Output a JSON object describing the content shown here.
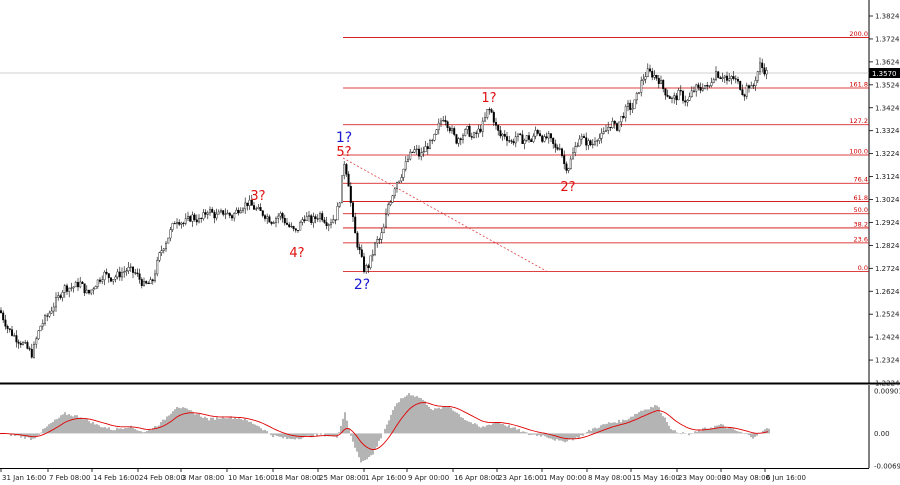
{
  "chart_data": {
    "type": "candlestick",
    "instrument_price_last": "1.3570",
    "price_axis": {
      "min": 1.2224,
      "max": 1.3824,
      "ticks": [
        "1.3824",
        "1.3724",
        "1.3624",
        "1.3524",
        "1.3424",
        "1.3324",
        "1.3224",
        "1.3124",
        "1.3024",
        "1.2924",
        "1.2824",
        "1.2724",
        "1.2624",
        "1.2524",
        "1.2424",
        "1.2324",
        "1.2224"
      ]
    },
    "time_axis": {
      "ticks": [
        "31 Jan 16:00",
        "7 Feb 08:00",
        "14 Feb 16:00",
        "24 Feb 08:00",
        "3 Mar 08:00",
        "10 Mar 16:00",
        "18 Mar 08:00",
        "25 Mar 08:00",
        "1 Apr 16:00",
        "9 Apr 00:00",
        "16 Apr 08:00",
        "23 Apr 16:00",
        "1 May 00:00",
        "8 May 08:00",
        "15 May 16:00",
        "23 May 00:00",
        "30 May 08:00",
        "6 Jun 16:00"
      ]
    },
    "fibonacci_levels": [
      {
        "label": "0.0",
        "price": 1.271
      },
      {
        "label": "23.6",
        "price": 1.2835
      },
      {
        "label": "38.2",
        "price": 1.29
      },
      {
        "label": "50.0",
        "price": 1.2962
      },
      {
        "label": "61.8",
        "price": 1.3015
      },
      {
        "label": "76.4",
        "price": 1.3095
      },
      {
        "label": "100.0",
        "price": 1.3218
      },
      {
        "label": "127.2",
        "price": 1.335
      },
      {
        "label": "161.8",
        "price": 1.351
      },
      {
        "label": "200.0",
        "price": 1.373
      }
    ],
    "wave_labels": [
      {
        "text": "3?",
        "color": "red"
      },
      {
        "text": "4?",
        "color": "red"
      },
      {
        "text": "1?",
        "color": "blue"
      },
      {
        "text": "5?",
        "color": "red"
      },
      {
        "text": "2?",
        "color": "blue"
      },
      {
        "text": "1?",
        "color": "red"
      },
      {
        "text": "2?",
        "color": "red"
      }
    ],
    "price_path": [
      [
        0,
        1.254
      ],
      [
        8,
        1.246
      ],
      [
        16,
        1.242
      ],
      [
        24,
        1.239
      ],
      [
        32,
        1.235
      ],
      [
        40,
        1.247
      ],
      [
        48,
        1.252
      ],
      [
        56,
        1.258
      ],
      [
        64,
        1.264
      ],
      [
        72,
        1.264
      ],
      [
        80,
        1.266
      ],
      [
        88,
        1.261
      ],
      [
        96,
        1.266
      ],
      [
        104,
        1.27
      ],
      [
        112,
        1.268
      ],
      [
        120,
        1.27
      ],
      [
        128,
        1.272
      ],
      [
        136,
        1.27
      ],
      [
        144,
        1.265
      ],
      [
        152,
        1.266
      ],
      [
        160,
        1.279
      ],
      [
        168,
        1.286
      ],
      [
        176,
        1.294
      ],
      [
        184,
        1.292
      ],
      [
        192,
        1.295
      ],
      [
        200,
        1.293
      ],
      [
        208,
        1.298
      ],
      [
        216,
        1.295
      ],
      [
        224,
        1.297
      ],
      [
        232,
        1.295
      ],
      [
        240,
        1.299
      ],
      [
        248,
        1.301
      ],
      [
        256,
        1.298
      ],
      [
        264,
        1.296
      ],
      [
        272,
        1.293
      ],
      [
        280,
        1.296
      ],
      [
        288,
        1.291
      ],
      [
        296,
        1.288
      ],
      [
        304,
        1.295
      ],
      [
        312,
        1.293
      ],
      [
        320,
        1.296
      ],
      [
        328,
        1.292
      ],
      [
        336,
        1.295
      ],
      [
        340,
        1.303
      ],
      [
        344,
        1.319
      ],
      [
        348,
        1.312
      ],
      [
        352,
        1.296
      ],
      [
        356,
        1.285
      ],
      [
        360,
        1.279
      ],
      [
        364,
        1.272
      ],
      [
        368,
        1.273
      ],
      [
        372,
        1.278
      ],
      [
        376,
        1.284
      ],
      [
        380,
        1.285
      ],
      [
        384,
        1.29
      ],
      [
        388,
        1.3
      ],
      [
        392,
        1.304
      ],
      [
        396,
        1.31
      ],
      [
        400,
        1.312
      ],
      [
        404,
        1.316
      ],
      [
        408,
        1.32
      ],
      [
        412,
        1.323
      ],
      [
        416,
        1.324
      ],
      [
        420,
        1.321
      ],
      [
        424,
        1.324
      ],
      [
        428,
        1.326
      ],
      [
        432,
        1.327
      ],
      [
        436,
        1.331
      ],
      [
        440,
        1.336
      ],
      [
        444,
        1.339
      ],
      [
        448,
        1.335
      ],
      [
        452,
        1.332
      ],
      [
        456,
        1.328
      ],
      [
        460,
        1.33
      ],
      [
        464,
        1.331
      ],
      [
        468,
        1.333
      ],
      [
        472,
        1.329
      ],
      [
        476,
        1.331
      ],
      [
        480,
        1.333
      ],
      [
        484,
        1.336
      ],
      [
        488,
        1.342
      ],
      [
        492,
        1.34
      ],
      [
        496,
        1.334
      ],
      [
        500,
        1.33
      ],
      [
        504,
        1.331
      ],
      [
        508,
        1.329
      ],
      [
        512,
        1.327
      ],
      [
        516,
        1.33
      ],
      [
        520,
        1.329
      ],
      [
        524,
        1.328
      ],
      [
        528,
        1.33
      ],
      [
        532,
        1.327
      ],
      [
        536,
        1.333
      ],
      [
        540,
        1.331
      ],
      [
        544,
        1.328
      ],
      [
        548,
        1.33
      ],
      [
        552,
        1.327
      ],
      [
        556,
        1.324
      ],
      [
        560,
        1.326
      ],
      [
        564,
        1.318
      ],
      [
        568,
        1.316
      ],
      [
        572,
        1.321
      ],
      [
        576,
        1.326
      ],
      [
        580,
        1.33
      ],
      [
        584,
        1.328
      ],
      [
        588,
        1.327
      ],
      [
        592,
        1.326
      ],
      [
        596,
        1.33
      ],
      [
        600,
        1.329
      ],
      [
        604,
        1.331
      ],
      [
        608,
        1.334
      ],
      [
        612,
        1.336
      ],
      [
        616,
        1.333
      ],
      [
        620,
        1.337
      ],
      [
        624,
        1.34
      ],
      [
        628,
        1.343
      ],
      [
        632,
        1.342
      ],
      [
        636,
        1.346
      ],
      [
        640,
        1.352
      ],
      [
        644,
        1.356
      ],
      [
        648,
        1.358
      ],
      [
        652,
        1.357
      ],
      [
        656,
        1.356
      ],
      [
        660,
        1.354
      ],
      [
        664,
        1.35
      ],
      [
        668,
        1.348
      ],
      [
        672,
        1.346
      ],
      [
        676,
        1.347
      ],
      [
        680,
        1.349
      ],
      [
        684,
        1.346
      ],
      [
        688,
        1.345
      ],
      [
        692,
        1.349
      ],
      [
        696,
        1.351
      ],
      [
        700,
        1.35
      ],
      [
        704,
        1.353
      ],
      [
        708,
        1.35
      ],
      [
        712,
        1.355
      ],
      [
        716,
        1.358
      ],
      [
        720,
        1.356
      ],
      [
        724,
        1.357
      ],
      [
        728,
        1.353
      ],
      [
        732,
        1.356
      ],
      [
        736,
        1.354
      ],
      [
        740,
        1.352
      ],
      [
        744,
        1.348
      ],
      [
        748,
        1.353
      ],
      [
        752,
        1.35
      ],
      [
        756,
        1.356
      ],
      [
        760,
        1.361
      ],
      [
        764,
        1.359
      ],
      [
        768,
        1.357
      ]
    ],
    "oscillator": {
      "ticks": [
        "0.00901",
        "0.00",
        "-0.00692"
      ],
      "max": 0.00901,
      "min": -0.00692
    },
    "histogram_path": [
      [
        0,
        0.0
      ],
      [
        16,
        -0.0005
      ],
      [
        32,
        -0.0012
      ],
      [
        48,
        0.0018
      ],
      [
        64,
        0.0042
      ],
      [
        80,
        0.0035
      ],
      [
        96,
        0.0018
      ],
      [
        112,
        0.0008
      ],
      [
        128,
        0.0015
      ],
      [
        144,
        0.0002
      ],
      [
        160,
        0.0022
      ],
      [
        176,
        0.0058
      ],
      [
        192,
        0.0045
      ],
      [
        208,
        0.003
      ],
      [
        224,
        0.0035
      ],
      [
        240,
        0.0032
      ],
      [
        256,
        0.0018
      ],
      [
        272,
        -0.0005
      ],
      [
        288,
        -0.0012
      ],
      [
        304,
        -0.0008
      ],
      [
        320,
        -0.0002
      ],
      [
        336,
        -0.0008
      ],
      [
        344,
        0.0045
      ],
      [
        352,
        -0.002
      ],
      [
        360,
        -0.006
      ],
      [
        372,
        -0.0045
      ],
      [
        384,
        0.001
      ],
      [
        396,
        0.0065
      ],
      [
        408,
        0.0085
      ],
      [
        420,
        0.0075
      ],
      [
        432,
        0.005
      ],
      [
        448,
        0.0058
      ],
      [
        464,
        0.003
      ],
      [
        480,
        0.0012
      ],
      [
        496,
        0.0025
      ],
      [
        512,
        0.0012
      ],
      [
        528,
        -0.0002
      ],
      [
        544,
        -0.0005
      ],
      [
        560,
        -0.0018
      ],
      [
        576,
        -0.001
      ],
      [
        592,
        0.001
      ],
      [
        608,
        0.0022
      ],
      [
        624,
        0.0028
      ],
      [
        640,
        0.0048
      ],
      [
        656,
        0.006
      ],
      [
        672,
        0.0005
      ],
      [
        688,
        -0.0003
      ],
      [
        704,
        0.001
      ],
      [
        720,
        0.0018
      ],
      [
        736,
        0.0005
      ],
      [
        752,
        -0.0008
      ],
      [
        768,
        0.0012
      ]
    ]
  }
}
